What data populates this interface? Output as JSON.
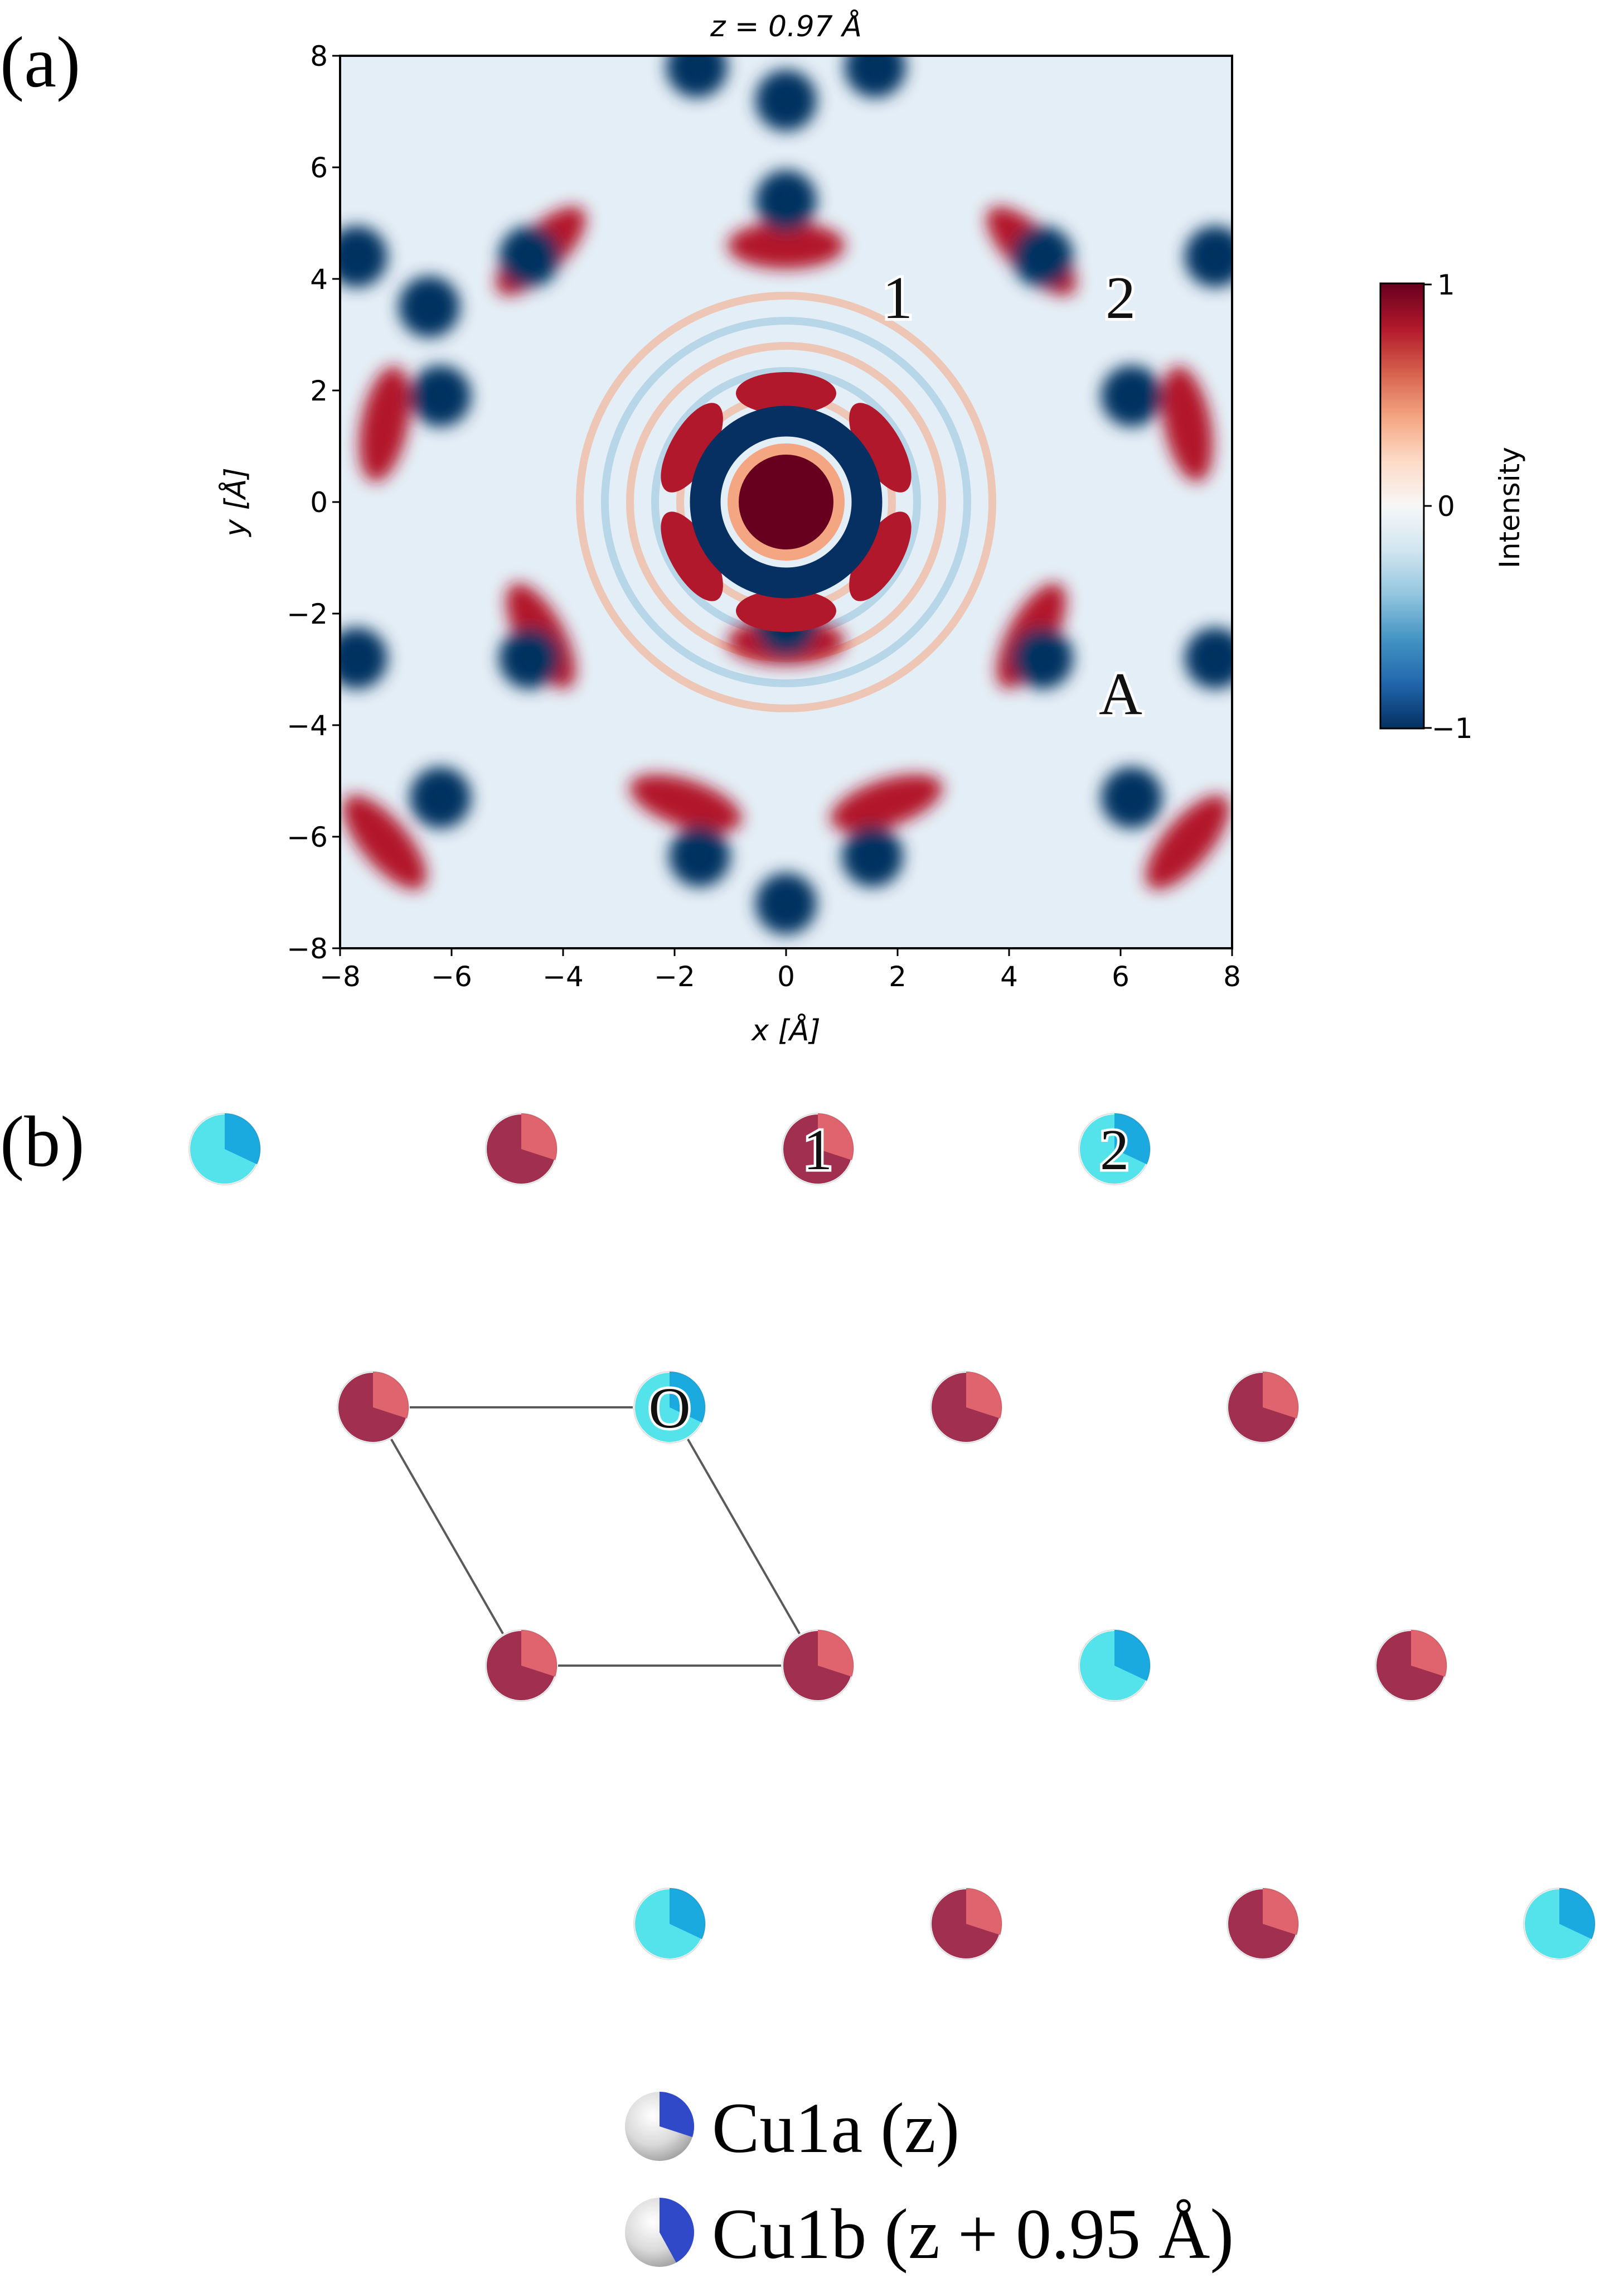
{
  "panel_a": {
    "label": "(a)",
    "title": "z = 0.97 Å",
    "xlabel": "x [Å]",
    "ylabel": "y [Å]",
    "annotations": [
      {
        "text": "1",
        "x": 2.0,
        "y": 3.6
      },
      {
        "text": "2",
        "x": 6.0,
        "y": 3.6
      },
      {
        "text": "A",
        "x": 6.0,
        "y": -3.5
      }
    ],
    "colorbar": {
      "label": "Intensity",
      "ticks": [
        "1",
        "0",
        "−1"
      ],
      "colors": [
        "#053061",
        "#2166ac",
        "#4393c3",
        "#92c5de",
        "#d1e5f0",
        "#f7f7f7",
        "#fddbc7",
        "#f4a582",
        "#d6604d",
        "#b2182b",
        "#67001f"
      ]
    }
  },
  "chart_data": {
    "type": "heatmap",
    "title": "z = 0.97 Å",
    "xlabel": "x [Å]",
    "ylabel": "y [Å]",
    "xlim": [
      -8,
      8
    ],
    "ylim": [
      -8,
      8
    ],
    "xticks": [
      -8,
      -6,
      -4,
      -2,
      0,
      2,
      4,
      6,
      8
    ],
    "yticks": [
      -8,
      -6,
      -4,
      -2,
      0,
      2,
      4,
      6,
      8
    ],
    "xtick_labels": [
      "−8",
      "−6",
      "−4",
      "−2",
      "0",
      "2",
      "4",
      "6",
      "8"
    ],
    "ytick_labels": [
      "−8",
      "−6",
      "−4",
      "−2",
      "0",
      "2",
      "4",
      "6",
      "8"
    ],
    "color_range": [
      -1,
      1
    ],
    "colorbar_label": "Intensity",
    "colormap": "RdBu_r",
    "lattice_a": 5.3,
    "blue_spot_positions_xy": [
      [
        0,
        5.4
      ],
      [
        -1.55,
        -6.35
      ],
      [
        1.55,
        -6.35
      ],
      [
        -4.6,
        4.4
      ],
      [
        4.6,
        4.4
      ],
      [
        -7.7,
        4.4
      ],
      [
        7.7,
        4.4
      ],
      [
        -4.6,
        -2.8
      ],
      [
        4.6,
        -2.8
      ],
      [
        -7.7,
        -2.8
      ],
      [
        7.7,
        -2.8
      ],
      [
        -6.2,
        1.9
      ],
      [
        6.2,
        1.9
      ],
      [
        -6.2,
        -5.3
      ],
      [
        6.2,
        -5.3
      ],
      [
        0,
        7.2
      ],
      [
        0,
        -7.2
      ],
      [
        -1.6,
        7.8
      ],
      [
        1.6,
        7.8
      ],
      [
        -6.4,
        3.5
      ],
      [
        0,
        -2.2
      ]
    ],
    "red_arc_positions_xy": [
      [
        0,
        4.6
      ],
      [
        0,
        -2.5
      ],
      [
        -4.4,
        4.5
      ],
      [
        4.4,
        4.5
      ],
      [
        -4.4,
        -2.4
      ],
      [
        4.4,
        -2.4
      ],
      [
        -7.2,
        1.4
      ],
      [
        7.2,
        1.4
      ],
      [
        -7.2,
        -6.1
      ],
      [
        7.2,
        -6.1
      ],
      [
        -1.8,
        -5.4
      ],
      [
        1.8,
        -5.4
      ]
    ]
  },
  "panel_b": {
    "label": "(b)",
    "site_labels": [
      {
        "text": "1",
        "atom": 2
      },
      {
        "text": "2",
        "atom": 3
      },
      {
        "text": "O",
        "atom": 5
      }
    ],
    "colors": {
      "cu1a": "#a12f4f",
      "cu1a_light": "#e0646e",
      "cu1b": "#54e3ea",
      "cu1b_light": "#1aaadf"
    },
    "atoms": [
      {
        "kind": "b",
        "gx": -1,
        "gy": 0
      },
      {
        "kind": "a",
        "gx": 0,
        "gy": 0
      },
      {
        "kind": "a",
        "gx": 1,
        "gy": 0
      },
      {
        "kind": "b",
        "gx": 2,
        "gy": 0
      },
      {
        "kind": "a",
        "gx": -0.5,
        "gy": 1
      },
      {
        "kind": "b",
        "gx": 0.5,
        "gy": 1
      },
      {
        "kind": "a",
        "gx": 1.5,
        "gy": 1
      },
      {
        "kind": "a",
        "gx": 2.5,
        "gy": 1
      },
      {
        "kind": "a",
        "gx": 0,
        "gy": 2
      },
      {
        "kind": "a",
        "gx": 1,
        "gy": 2
      },
      {
        "kind": "b",
        "gx": 2,
        "gy": 2
      },
      {
        "kind": "a",
        "gx": 3,
        "gy": 2
      },
      {
        "kind": "b",
        "gx": 0.5,
        "gy": 3
      },
      {
        "kind": "a",
        "gx": 1.5,
        "gy": 3
      },
      {
        "kind": "a",
        "gx": 2.5,
        "gy": 3
      },
      {
        "kind": "b",
        "gx": 3.5,
        "gy": 3
      }
    ],
    "unit_cell_atoms": [
      4,
      5,
      9,
      8
    ],
    "legend": [
      {
        "label": "Cu1a (z)",
        "fraction": 0.3
      },
      {
        "label": "Cu1b (z + 0.95 Å)",
        "fraction": 0.42
      }
    ]
  }
}
